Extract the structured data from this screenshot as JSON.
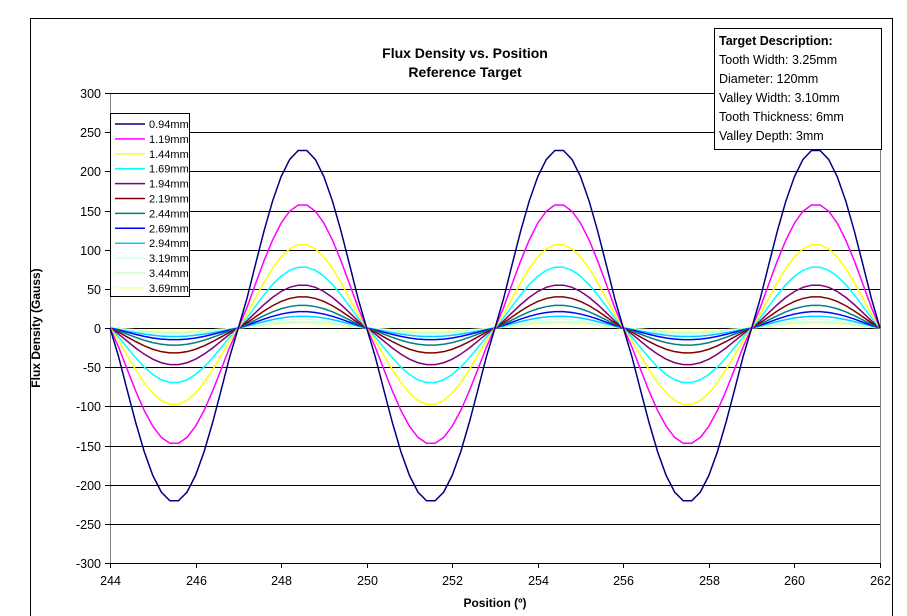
{
  "chart_data": {
    "type": "line",
    "title": "Flux Density vs. Position",
    "subtitle": "Reference Target",
    "xlabel": "Position (º)",
    "ylabel": "Flux Density (Gauss)",
    "xlim": [
      244,
      262
    ],
    "ylim": [
      -300,
      300
    ],
    "xticks": [
      "244",
      "246",
      "248",
      "250",
      "252",
      "254",
      "256",
      "258",
      "260",
      "262"
    ],
    "yticks": [
      "300",
      "250",
      "200",
      "150",
      "100",
      "50",
      "0",
      "-50",
      "-100",
      "-150",
      "-200",
      "-250",
      "-300"
    ],
    "grid": "horizontal",
    "legend_position": "left",
    "period_degrees": 6,
    "zero_crossings": [
      244,
      247,
      250,
      253,
      256,
      259,
      262
    ],
    "series": [
      {
        "name": "0.94mm",
        "color": "#000080",
        "max": 228,
        "min": -222
      },
      {
        "name": "1.19mm",
        "color": "#FF00FF",
        "max": 158,
        "min": -148
      },
      {
        "name": "1.44mm",
        "color": "#FFFF00",
        "max": 107,
        "min": -98
      },
      {
        "name": "1.69mm",
        "color": "#00FFFF",
        "max": 78,
        "min": -70
      },
      {
        "name": "1.94mm",
        "color": "#800080",
        "max": 55,
        "min": -47
      },
      {
        "name": "2.19mm",
        "color": "#800000",
        "max": 40,
        "min": -32
      },
      {
        "name": "2.44mm",
        "color": "#008080",
        "max": 29,
        "min": -22
      },
      {
        "name": "2.69mm",
        "color": "#0000FF",
        "max": 21,
        "min": -15
      },
      {
        "name": "2.94mm",
        "color": "#00CCFF",
        "max": 15,
        "min": -11
      },
      {
        "name": "3.19mm",
        "color": "#CCFFFF",
        "max": 11,
        "min": -8
      },
      {
        "name": "3.44mm",
        "color": "#CCFFCC",
        "max": 8,
        "min": -6
      },
      {
        "name": "3.69mm",
        "color": "#FFFF99",
        "max": 6,
        "min": -4
      }
    ]
  },
  "target_box": {
    "heading": "Target Description:",
    "lines": [
      "Tooth Width: 3.25mm",
      "Diameter: 120mm",
      "Valley Width: 3.10mm",
      "Tooth Thickness: 6mm",
      "Valley Depth: 3mm"
    ]
  }
}
